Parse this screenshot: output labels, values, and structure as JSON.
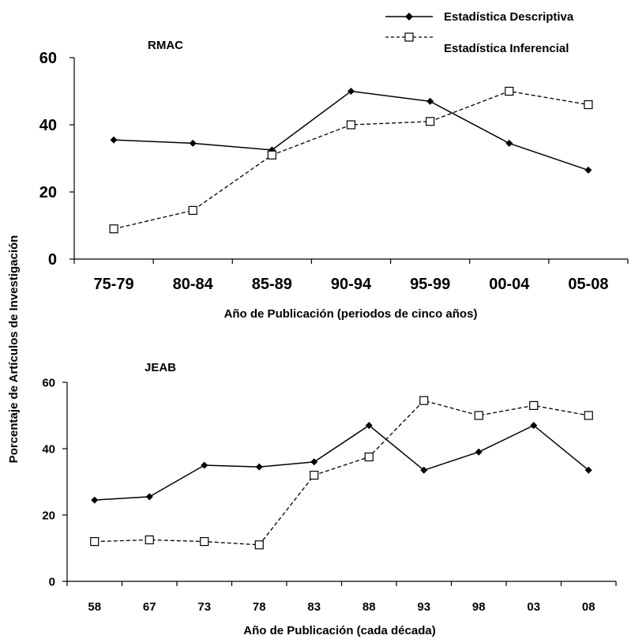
{
  "shared_ylabel": "Porcentaje de Artículos de Investigación",
  "legend": {
    "placement": "top-right",
    "entries": [
      {
        "label": "Estadística Descriptiva",
        "marker": "filled-diamond",
        "line": "solid"
      },
      {
        "label": "Estadística Inferencial",
        "marker": "open-square",
        "line": "dashed"
      }
    ]
  },
  "chart_data": [
    {
      "type": "line",
      "title": "RMAC",
      "xlabel": "Año de Publicación (periodos de cinco años)",
      "ylabel": "",
      "categories": [
        "75-79",
        "80-84",
        "85-89",
        "90-94",
        "95-99",
        "00-04",
        "05-08"
      ],
      "ylim": [
        0,
        60
      ],
      "yticks": [
        0,
        20,
        40,
        60
      ],
      "grid": false,
      "series": [
        {
          "name": "Estadística Descriptiva",
          "values": [
            35.5,
            34.5,
            32.5,
            50,
            47,
            34.5,
            26.5
          ]
        },
        {
          "name": "Estadística Inferencial",
          "values": [
            9,
            14.5,
            31,
            40,
            41,
            50,
            46
          ]
        }
      ]
    },
    {
      "type": "line",
      "title": "JEAB",
      "xlabel": "Año de Publicación (cada década)",
      "ylabel": "",
      "categories": [
        "58",
        "67",
        "73",
        "78",
        "83",
        "88",
        "93",
        "98",
        "03",
        "08"
      ],
      "ylim": [
        0,
        60
      ],
      "yticks": [
        0,
        20,
        40,
        60
      ],
      "grid": false,
      "series": [
        {
          "name": "Estadística Descriptiva",
          "values": [
            24.5,
            25.5,
            35,
            34.5,
            36,
            47,
            33.5,
            39,
            47,
            33.5
          ]
        },
        {
          "name": "Estadística Inferencial",
          "values": [
            12,
            12.5,
            12,
            11,
            32,
            37.5,
            54.5,
            50,
            53,
            50
          ]
        }
      ]
    }
  ]
}
